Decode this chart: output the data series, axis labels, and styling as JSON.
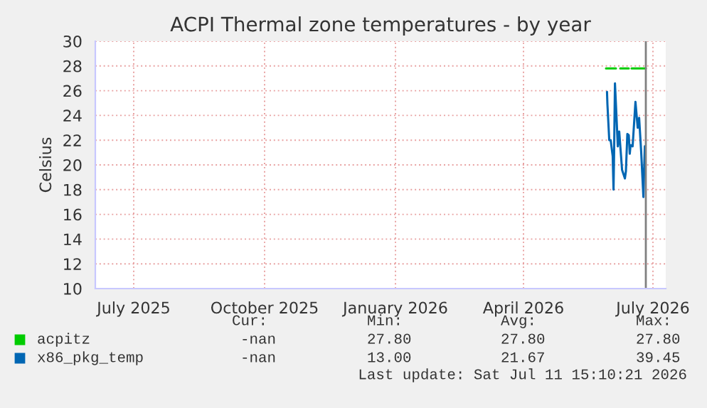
{
  "chart_data": {
    "type": "line",
    "title": "ACPI Thermal zone temperatures - by year",
    "ylabel": "Celsius",
    "xlim": [
      "2025-06-04",
      "2026-07-10"
    ],
    "ylim": [
      10,
      30
    ],
    "xticks": [
      {
        "value": "2025-07-01",
        "label": "July 2025"
      },
      {
        "value": "2025-10-01",
        "label": "October 2025"
      },
      {
        "value": "2026-01-01",
        "label": "January 2026"
      },
      {
        "value": "2026-04-01",
        "label": "April 2026"
      },
      {
        "value": "2026-07-01",
        "label": "July 2026"
      }
    ],
    "yticks": [
      10,
      12,
      14,
      16,
      18,
      20,
      22,
      24,
      26,
      28,
      30
    ],
    "grid": true,
    "legend": "bottom",
    "ref_lines": [
      {
        "axis": "x",
        "value": "2026-06-26",
        "color": "#808080"
      }
    ],
    "series": [
      {
        "name": "acpitz",
        "color": "#00cc00",
        "x": [
          "2026-05-29",
          "2026-06-05",
          "2026-06-06",
          "2026-06-08",
          "2026-06-14",
          "2026-06-15",
          "2026-06-16",
          "2026-06-26"
        ],
        "values": [
          27.8,
          27.8,
          null,
          27.8,
          27.8,
          null,
          27.8,
          27.8
        ]
      },
      {
        "name": "x86_pkg_temp",
        "color": "#0066b3",
        "x": [
          "2026-05-29T17:00",
          "2026-05-30T00:00",
          "2026-05-31T07:00",
          "2026-06-01T07:00",
          "2026-06-02T17:00",
          "2026-06-03T07:00",
          "2026-06-03T17:00",
          "2026-06-04T07:00",
          "2026-06-05T07:00",
          "2026-06-06T07:00",
          "2026-06-07T07:00",
          "2026-06-09T07:00",
          "2026-06-11T07:00",
          "2026-06-12T00:00",
          "2026-06-13T00:00",
          "2026-06-14T00:00",
          "2026-06-14T17:00",
          "2026-06-15T07:00",
          "2026-06-16T17:00",
          "2026-06-18T17:00",
          "2026-06-20T07:00",
          "2026-06-21T07:00",
          "2026-06-22T17:00",
          "2026-06-24T07:00",
          "2026-06-25T07:00"
        ],
        "values": [
          25.9,
          24.9,
          22.0,
          22.0,
          20.7,
          18.0,
          21.1,
          26.6,
          24.1,
          21.5,
          22.7,
          19.6,
          18.9,
          19.5,
          22.5,
          22.4,
          20.9,
          21.6,
          21.5,
          25.1,
          23.0,
          23.8,
          21.1,
          17.4,
          21.5
        ]
      }
    ],
    "annotations": [
      "Cur:",
      "Min:",
      "Avg:",
      "Max:",
      "-nan",
      "27.80",
      "27.80",
      "27.80",
      "-nan",
      "13.00",
      "21.67",
      "39.45",
      "Last update: Sat Jul 11 15:10:21 2026"
    ]
  }
}
